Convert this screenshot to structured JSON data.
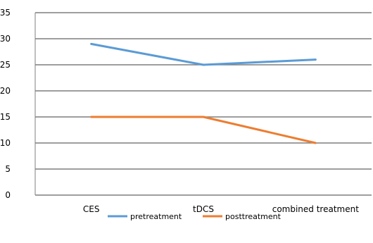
{
  "chart_data": {
    "type": "line",
    "categories": [
      "CES",
      "tDCS",
      "combined treatment"
    ],
    "series": [
      {
        "name": "pretreatment",
        "values": [
          29,
          25,
          26
        ],
        "color": "#5B9BD5"
      },
      {
        "name": "posttreatment",
        "values": [
          15,
          15,
          10
        ],
        "color": "#ED7D31"
      }
    ],
    "ylim": [
      0,
      35
    ],
    "yticks": [
      0,
      5,
      10,
      15,
      20,
      25,
      30,
      35
    ],
    "grid": true,
    "legend_position": "bottom",
    "axis_color": "#7F7F7F"
  }
}
